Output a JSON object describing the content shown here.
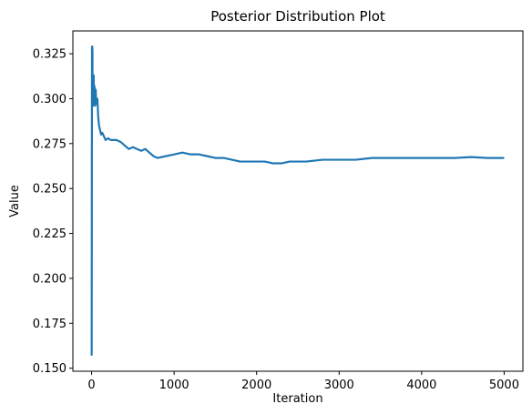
{
  "chart_data": {
    "type": "line",
    "title": "Posterior Distribution Plot",
    "xlabel": "Iteration",
    "ylabel": "Value",
    "xlim": [
      -227,
      5227
    ],
    "ylim": [
      0.1483,
      0.3377
    ],
    "xticks": [
      0,
      1000,
      2000,
      3000,
      4000,
      5000
    ],
    "xtick_labels": [
      "0",
      "1000",
      "2000",
      "3000",
      "4000",
      "5000"
    ],
    "yticks": [
      0.15,
      0.175,
      0.2,
      0.225,
      0.25,
      0.275,
      0.3,
      0.325
    ],
    "ytick_labels": [
      "0.150",
      "0.175",
      "0.200",
      "0.225",
      "0.250",
      "0.275",
      "0.300",
      "0.325"
    ],
    "grid": false,
    "series": [
      {
        "color": "#1f77b4",
        "x": [
          0,
          1,
          2,
          3,
          4,
          5,
          6,
          8,
          10,
          12,
          15,
          18,
          20,
          25,
          30,
          35,
          40,
          45,
          50,
          55,
          60,
          70,
          80,
          90,
          100,
          115,
          130,
          150,
          170,
          200,
          230,
          260,
          300,
          350,
          400,
          450,
          500,
          550,
          600,
          650,
          700,
          750,
          800,
          900,
          1000,
          1100,
          1200,
          1300,
          1400,
          1500,
          1600,
          1700,
          1800,
          1900,
          2000,
          2100,
          2200,
          2300,
          2400,
          2600,
          2800,
          3000,
          3200,
          3400,
          3600,
          3800,
          4000,
          4200,
          4400,
          4600,
          4800,
          5000
        ],
        "y": [
          0.157,
          0.16,
          0.2,
          0.255,
          0.3,
          0.329,
          0.318,
          0.329,
          0.326,
          0.3,
          0.296,
          0.304,
          0.3,
          0.313,
          0.298,
          0.307,
          0.296,
          0.301,
          0.305,
          0.298,
          0.297,
          0.3,
          0.29,
          0.285,
          0.283,
          0.28,
          0.281,
          0.279,
          0.277,
          0.278,
          0.277,
          0.277,
          0.277,
          0.276,
          0.274,
          0.272,
          0.273,
          0.272,
          0.271,
          0.272,
          0.27,
          0.268,
          0.267,
          0.268,
          0.269,
          0.27,
          0.269,
          0.269,
          0.268,
          0.267,
          0.267,
          0.266,
          0.265,
          0.265,
          0.265,
          0.265,
          0.264,
          0.264,
          0.265,
          0.265,
          0.266,
          0.266,
          0.266,
          0.267,
          0.267,
          0.267,
          0.267,
          0.267,
          0.267,
          0.2675,
          0.267,
          0.267
        ]
      }
    ]
  }
}
